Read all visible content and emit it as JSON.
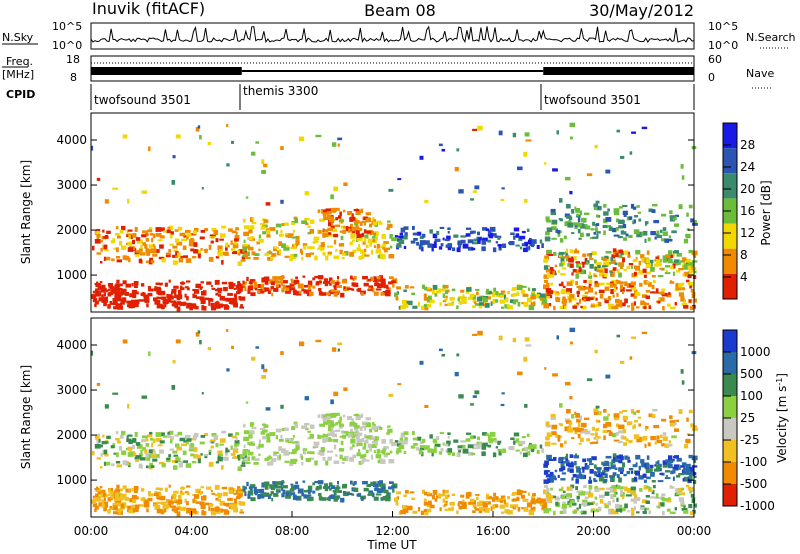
{
  "header": {
    "station": "Inuvik (fitACF)",
    "beam": "Beam 08",
    "date": "30/May/2012"
  },
  "panels": {
    "nsky": {
      "label": "N.Sky",
      "top_tick": "10^5",
      "bottom_tick": "10^0",
      "right_label": "N.Search"
    },
    "freq": {
      "label_line1": "Freq.",
      "label_line2": "[MHz]",
      "left_ticks": [
        "18",
        "8"
      ],
      "right_ticks": [
        "60",
        "0"
      ],
      "right_label": "Nave"
    },
    "cpid": {
      "label": "CPID",
      "modes": [
        "twofsound 3501",
        "themis 3300",
        "twofsound 3501"
      ]
    }
  },
  "chart_data": [
    {
      "type": "heatmap",
      "title": "",
      "xlabel": "",
      "ylabel": "Slant Range [km]",
      "x_ticks": [
        "00:00",
        "04:00",
        "08:00",
        "12:00",
        "16:00",
        "20:00",
        "00:00"
      ],
      "y_ticks": [
        1000,
        2000,
        3000,
        4000
      ],
      "xlim": [
        0,
        24
      ],
      "ylim": [
        180,
        4600
      ],
      "colorbar": {
        "label": "Power [dB]",
        "ticks": [
          "4",
          "8",
          "12",
          "16",
          "20",
          "24",
          "28"
        ],
        "colors": [
          "#1a1ae6",
          "#2a55b0",
          "#3a8a6e",
          "#6cbc3c",
          "#f0d800",
          "#f08a00",
          "#e02000"
        ]
      }
    },
    {
      "type": "heatmap",
      "title": "",
      "xlabel": "Time UT",
      "ylabel": "Slant Range [km]",
      "x_ticks": [
        "00:00",
        "04:00",
        "08:00",
        "12:00",
        "16:00",
        "20:00",
        "00:00"
      ],
      "y_ticks": [
        1000,
        2000,
        3000,
        4000
      ],
      "xlim": [
        0,
        24
      ],
      "ylim": [
        180,
        4600
      ],
      "colorbar": {
        "label": "Velocity [m s^-1]",
        "ticks": [
          "1000",
          "500",
          "100",
          "25",
          "-25",
          "-100",
          "-500",
          "-1000"
        ],
        "colors": [
          "#1a3ad0",
          "#2a6aa8",
          "#3a8a50",
          "#8ad040",
          "#c8c8c0",
          "#f0c020",
          "#f08a00",
          "#e02000"
        ]
      }
    }
  ]
}
